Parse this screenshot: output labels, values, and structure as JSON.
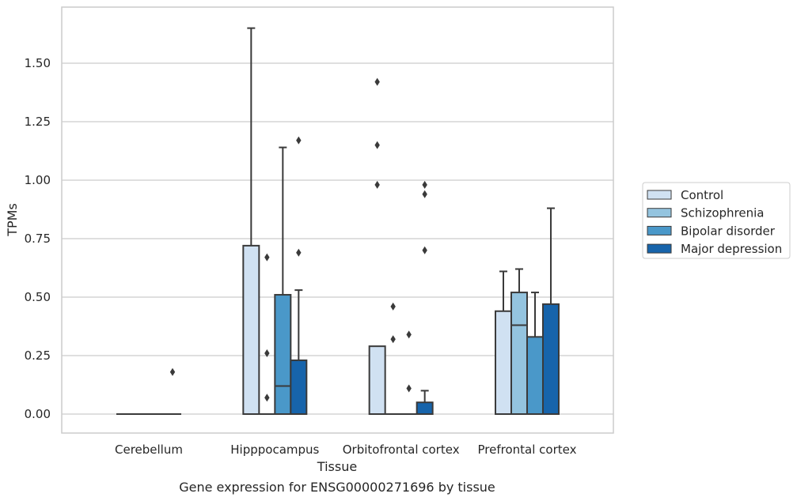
{
  "chart_data": {
    "type": "box",
    "caption": "Gene expression for ENSG00000271696 by tissue",
    "xlabel": "Tissue",
    "ylabel": "TPMs",
    "ylim": [
      -0.08,
      1.72
    ],
    "yticks": [
      0.0,
      0.25,
      0.5,
      0.75,
      1.0,
      1.25,
      1.5
    ],
    "ytick_labels": [
      "0.00",
      "0.25",
      "0.50",
      "0.75",
      "1.00",
      "1.25",
      "1.50"
    ],
    "grid": "horizontal",
    "legend_position": "right",
    "categories": [
      "Cerebellum",
      "Hipppocampus",
      "Orbitofrontal cortex",
      "Prefrontal cortex"
    ],
    "series": [
      {
        "name": "Control",
        "color": "#d0e1f2",
        "boxes": [
          {
            "whislo": 0.0,
            "q1": 0.0,
            "med": 0.0,
            "q3": 0.0,
            "whishi": 0.0,
            "fliers": []
          },
          {
            "whislo": 0.0,
            "q1": 0.0,
            "med": 0.0,
            "q3": 0.72,
            "whishi": 1.65,
            "fliers": []
          },
          {
            "whislo": 0.0,
            "q1": 0.0,
            "med": 0.0,
            "q3": 0.29,
            "whishi": 0.29,
            "fliers": [
              0.98,
              1.15,
              1.42
            ]
          },
          {
            "whislo": 0.0,
            "q1": 0.0,
            "med": 0.0,
            "q3": 0.44,
            "whishi": 0.61,
            "fliers": []
          }
        ]
      },
      {
        "name": "Schizophrenia",
        "color": "#94c4df",
        "boxes": [
          {
            "whislo": 0.0,
            "q1": 0.0,
            "med": 0.0,
            "q3": 0.0,
            "whishi": 0.0,
            "fliers": []
          },
          {
            "whislo": 0.0,
            "q1": 0.0,
            "med": 0.0,
            "q3": 0.0,
            "whishi": 0.0,
            "fliers": [
              0.07,
              0.26,
              0.67
            ]
          },
          {
            "whislo": 0.0,
            "q1": 0.0,
            "med": 0.0,
            "q3": 0.0,
            "whishi": 0.0,
            "fliers": [
              0.32,
              0.46
            ]
          },
          {
            "whislo": 0.0,
            "q1": 0.0,
            "med": 0.38,
            "q3": 0.52,
            "whishi": 0.62,
            "fliers": []
          }
        ]
      },
      {
        "name": "Bipolar disorder",
        "color": "#4a98c9",
        "boxes": [
          {
            "whislo": 0.0,
            "q1": 0.0,
            "med": 0.0,
            "q3": 0.0,
            "whishi": 0.0,
            "fliers": []
          },
          {
            "whislo": 0.0,
            "q1": 0.0,
            "med": 0.12,
            "q3": 0.51,
            "whishi": 1.14,
            "fliers": []
          },
          {
            "whislo": 0.0,
            "q1": 0.0,
            "med": 0.0,
            "q3": 0.0,
            "whishi": 0.0,
            "fliers": [
              0.11,
              0.34
            ]
          },
          {
            "whislo": 0.0,
            "q1": 0.0,
            "med": 0.0,
            "q3": 0.33,
            "whishi": 0.52,
            "fliers": []
          }
        ]
      },
      {
        "name": "Major depression",
        "color": "#1764ab",
        "boxes": [
          {
            "whislo": 0.0,
            "q1": 0.0,
            "med": 0.0,
            "q3": 0.0,
            "whishi": 0.0,
            "fliers": [
              0.18
            ]
          },
          {
            "whislo": 0.0,
            "q1": 0.0,
            "med": 0.0,
            "q3": 0.23,
            "whishi": 0.53,
            "fliers": [
              0.69,
              1.17
            ]
          },
          {
            "whislo": 0.0,
            "q1": 0.0,
            "med": 0.0,
            "q3": 0.05,
            "whishi": 0.1,
            "fliers": [
              0.7,
              0.94,
              0.98
            ]
          },
          {
            "whislo": 0.0,
            "q1": 0.0,
            "med": 0.0,
            "q3": 0.47,
            "whishi": 0.88,
            "fliers": []
          }
        ]
      }
    ]
  }
}
